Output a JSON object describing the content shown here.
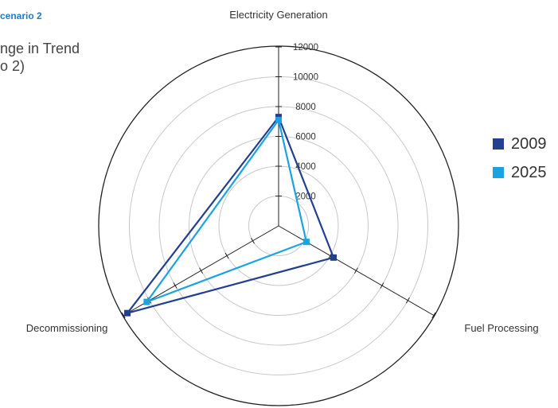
{
  "header": {
    "tag": "cenario 2",
    "title_lines": [
      "nge in Trend",
      "o 2)"
    ]
  },
  "chart_data": {
    "type": "radar",
    "axes": [
      "Electricity Generation",
      "Fuel Processing",
      "Decommissioning"
    ],
    "ticks": [
      2000,
      4000,
      6000,
      8000,
      10000,
      12000
    ],
    "rlim": [
      0,
      12000
    ],
    "grid": true,
    "legend_position": "right",
    "series": [
      {
        "name": "2009",
        "color": "#233f8f",
        "values": [
          7300,
          4250,
          11700
        ]
      },
      {
        "name": "2025",
        "color": "#1aa3e0",
        "values": [
          7100,
          2150,
          10200
        ]
      }
    ]
  }
}
